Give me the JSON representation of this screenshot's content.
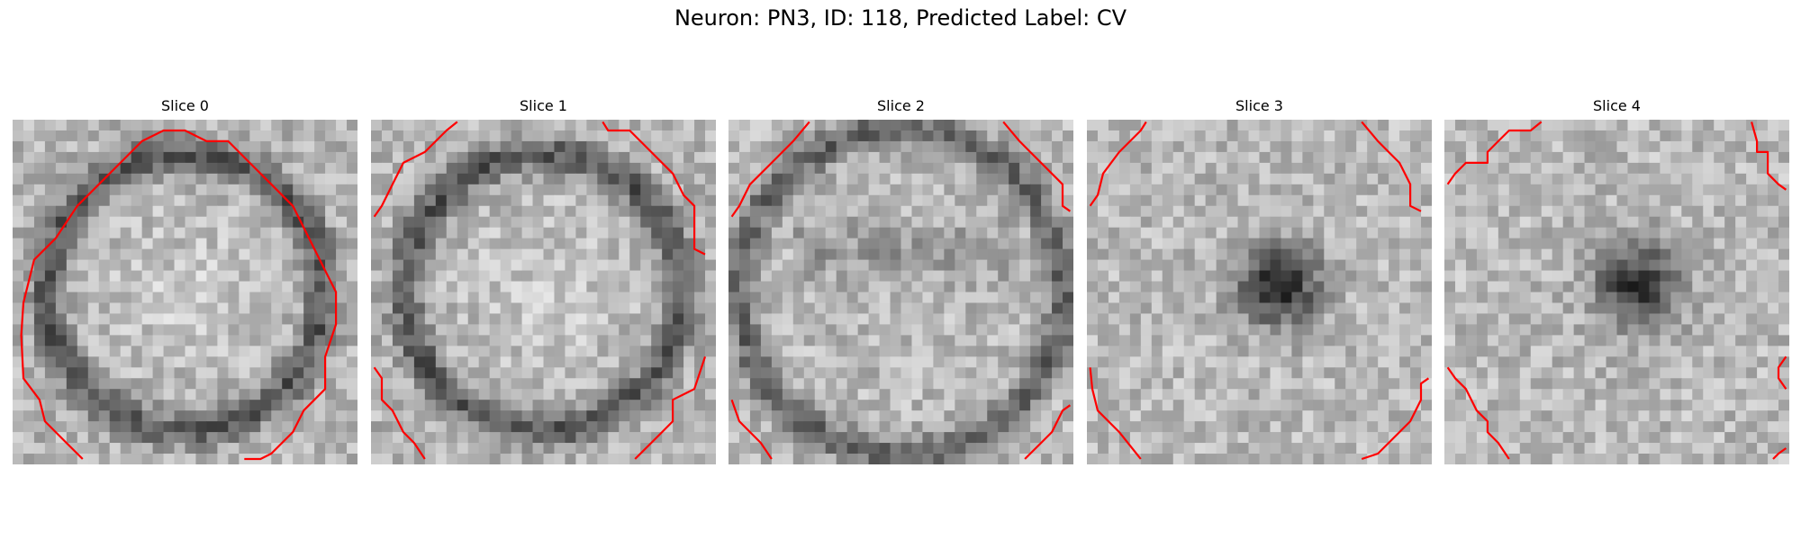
{
  "figure": {
    "title": "Neuron: PN3, ID: 118, Predicted Label: CV",
    "contour_color": "#ff0000",
    "colormap": "gray",
    "image_grid": [
      32,
      32
    ]
  },
  "slices": [
    {
      "title": "Slice 0",
      "pattern": "ring",
      "contour_shape": "circle"
    },
    {
      "title": "Slice 1",
      "pattern": "ring",
      "contour_shape": "arcs"
    },
    {
      "title": "Slice 2",
      "pattern": "ring-wide",
      "contour_shape": "corners"
    },
    {
      "title": "Slice 3",
      "pattern": "center-dark",
      "contour_shape": "corners"
    },
    {
      "title": "Slice 4",
      "pattern": "center-dark",
      "contour_shape": "corners"
    }
  ]
}
